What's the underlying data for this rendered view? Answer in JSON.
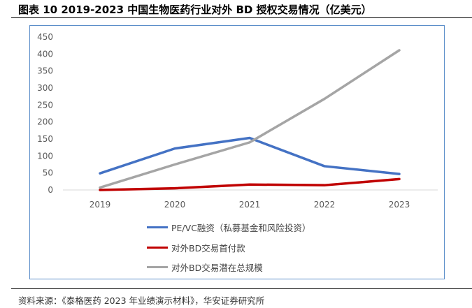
{
  "title": "图表 10 2019-2023  中国生物医药行业对外 BD 授权交易情况（亿美元）",
  "source": "资料来源：《泰格医药 2023 年业绩演示材料》，华安证券研究所",
  "chart_data": {
    "type": "line",
    "title": "图表 10 2019-2023  中国生物医药行业对外 BD 授权交易情况（亿美元）",
    "categories": [
      "2019",
      "2020",
      "2021",
      "2022",
      "2023"
    ],
    "yticks": [
      "0",
      "50",
      "100",
      "150",
      "200",
      "250",
      "300",
      "350",
      "400",
      "450"
    ],
    "ylim": [
      0,
      450
    ],
    "legend_position": "bottom",
    "series": [
      {
        "name": "PE/VC融资（私募基金和风险投资）",
        "color": "#4472c4",
        "values": [
          49,
          122,
          153,
          70,
          47
        ]
      },
      {
        "name": "对外BD交易首付款",
        "color": "#c00000",
        "values": [
          0,
          5,
          16,
          14,
          32
        ]
      },
      {
        "name": "对外BD交易潜在总规模",
        "color": "#a5a5a5",
        "values": [
          7,
          75,
          140,
          268,
          411
        ]
      }
    ]
  }
}
